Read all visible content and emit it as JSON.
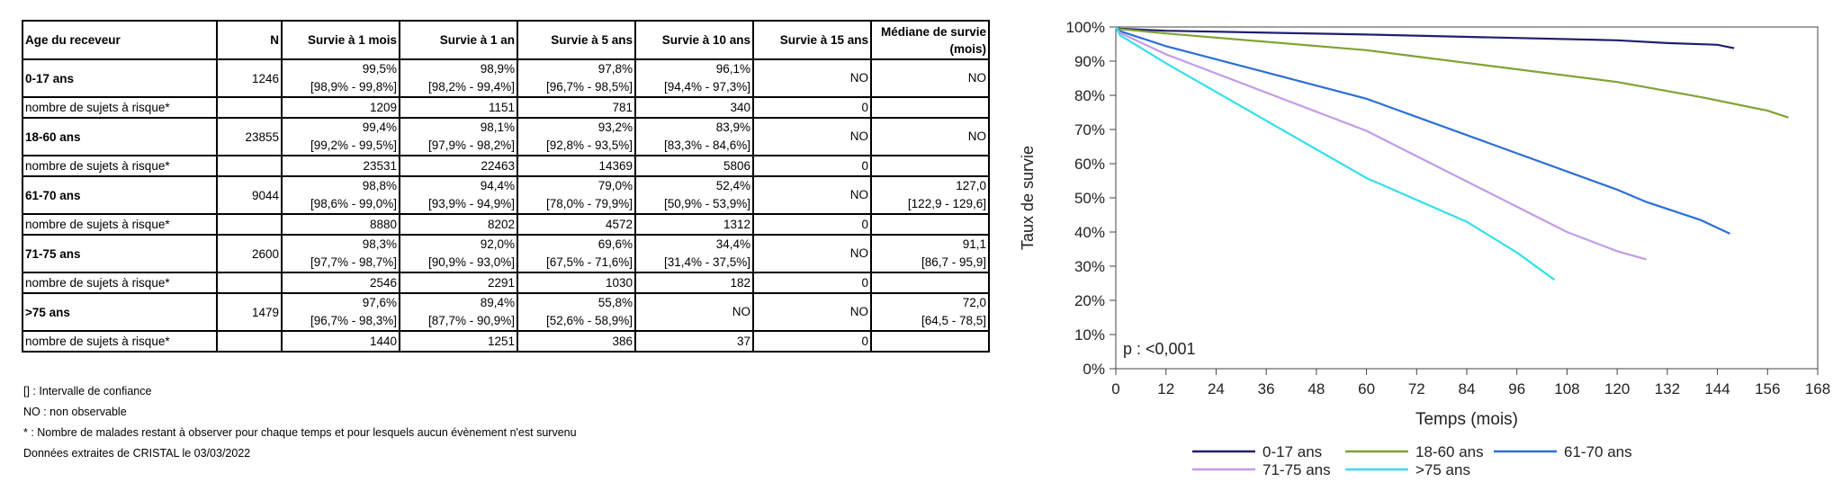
{
  "table": {
    "headers": [
      "Age du receveur",
      "N",
      "Survie à 1 mois",
      "Survie à 1 an",
      "Survie à 5 ans",
      "Survie à 10 ans",
      "Survie à 15 ans",
      "Médiane de survie (mois)"
    ],
    "rows": [
      {
        "age": "0-17 ans",
        "n": "1246",
        "values": [
          "99,5%",
          "98,9%",
          "97,8%",
          "96,1%",
          "NO",
          "NO"
        ],
        "ci": [
          "[98,9% - 99,8%]",
          "[98,2% - 99,4%]",
          "[96,7% - 98,5%]",
          "[94,4% - 97,3%]",
          "",
          ""
        ],
        "risk_label": "nombre de sujets à risque*",
        "risk": [
          "1209",
          "1151",
          "781",
          "340",
          "0",
          ""
        ]
      },
      {
        "age": "18-60 ans",
        "n": "23855",
        "values": [
          "99,4%",
          "98,1%",
          "93,2%",
          "83,9%",
          "NO",
          "NO"
        ],
        "ci": [
          "[99,2% - 99,5%]",
          "[97,9% - 98,2%]",
          "[92,8% - 93,5%]",
          "[83,3% - 84,6%]",
          "",
          ""
        ],
        "risk_label": "nombre de sujets à risque*",
        "risk": [
          "23531",
          "22463",
          "14369",
          "5806",
          "0",
          ""
        ]
      },
      {
        "age": "61-70 ans",
        "n": "9044",
        "values": [
          "98,8%",
          "94,4%",
          "79,0%",
          "52,4%",
          "NO",
          "127,0"
        ],
        "ci": [
          "[98,6% - 99,0%]",
          "[93,9% - 94,9%]",
          "[78,0% - 79,9%]",
          "[50,9% - 53,9%]",
          "",
          "[122,9 - 129,6]"
        ],
        "risk_label": "nombre de sujets à risque*",
        "risk": [
          "8880",
          "8202",
          "4572",
          "1312",
          "0",
          ""
        ]
      },
      {
        "age": "71-75 ans",
        "n": "2600",
        "values": [
          "98,3%",
          "92,0%",
          "69,6%",
          "34,4%",
          "NO",
          "91,1"
        ],
        "ci": [
          "[97,7% - 98,7%]",
          "[90,9% - 93,0%]",
          "[67,5% - 71,6%]",
          "[31,4% - 37,5%]",
          "",
          "[86,7 - 95,9]"
        ],
        "risk_label": "nombre de sujets à risque*",
        "risk": [
          "2546",
          "2291",
          "1030",
          "182",
          "0",
          ""
        ]
      },
      {
        "age": ">75 ans",
        "n": "1479",
        "values": [
          "97,6%",
          "89,4%",
          "55,8%",
          "NO",
          "NO",
          "72,0"
        ],
        "ci": [
          "[96,7% - 98,3%]",
          "[87,7% - 90,9%]",
          "[52,6% - 58,9%]",
          "",
          "",
          "[64,5 - 78,5]"
        ],
        "risk_label": "nombre de sujets à risque*",
        "risk": [
          "1440",
          "1251",
          "386",
          "37",
          "0",
          ""
        ]
      }
    ]
  },
  "footnotes": [
    "[] : Intervalle de confiance",
    "NO : non observable",
    "* : Nombre de malades restant à observer pour chaque temps et pour lesquels aucun évènement n'est survenu",
    "Données extraites de CRISTAL le 03/03/2022"
  ],
  "chart_data": {
    "type": "line",
    "xlabel": "Temps (mois)",
    "ylabel": "Taux de survie",
    "xlim": [
      0,
      168
    ],
    "ylim": [
      0,
      100
    ],
    "xticks": [
      0,
      12,
      24,
      36,
      48,
      60,
      72,
      84,
      96,
      108,
      120,
      132,
      144,
      156,
      168
    ],
    "yticks": [
      0,
      10,
      20,
      30,
      40,
      50,
      60,
      70,
      80,
      90,
      100
    ],
    "ytick_labels": [
      "0%",
      "10%",
      "20%",
      "30%",
      "40%",
      "50%",
      "60%",
      "70%",
      "80%",
      "90%",
      "100%"
    ],
    "annotation": "p : <0,001",
    "legend_position": "bottom",
    "series": [
      {
        "name": "0-17 ans",
        "color": "#1f1f6e",
        "x": [
          0,
          1,
          12,
          60,
          120,
          132,
          144,
          148
        ],
        "y": [
          100,
          99.5,
          98.9,
          97.8,
          96.1,
          95.3,
          94.8,
          93.8
        ]
      },
      {
        "name": "18-60 ans",
        "color": "#7fa332",
        "x": [
          0,
          1,
          12,
          60,
          120,
          140,
          156,
          161
        ],
        "y": [
          100,
          99.4,
          98.1,
          93.2,
          83.9,
          79.5,
          75.5,
          73.5
        ]
      },
      {
        "name": "61-70 ans",
        "color": "#2a6fd6",
        "x": [
          0,
          1,
          12,
          60,
          120,
          127,
          140,
          147
        ],
        "y": [
          100,
          98.8,
          94.4,
          79.0,
          52.4,
          48.8,
          43.5,
          39.5
        ]
      },
      {
        "name": "71-75 ans",
        "color": "#c39be6",
        "x": [
          0,
          1,
          12,
          60,
          108,
          120,
          127
        ],
        "y": [
          100,
          98.3,
          92.0,
          69.6,
          40.0,
          34.4,
          32.0
        ]
      },
      {
        "name": ">75 ans",
        "color": "#33e0ea",
        "x": [
          0,
          1,
          12,
          60,
          84,
          96,
          105
        ],
        "y": [
          100,
          97.6,
          89.4,
          55.8,
          43.0,
          34.0,
          26.0
        ]
      }
    ]
  }
}
